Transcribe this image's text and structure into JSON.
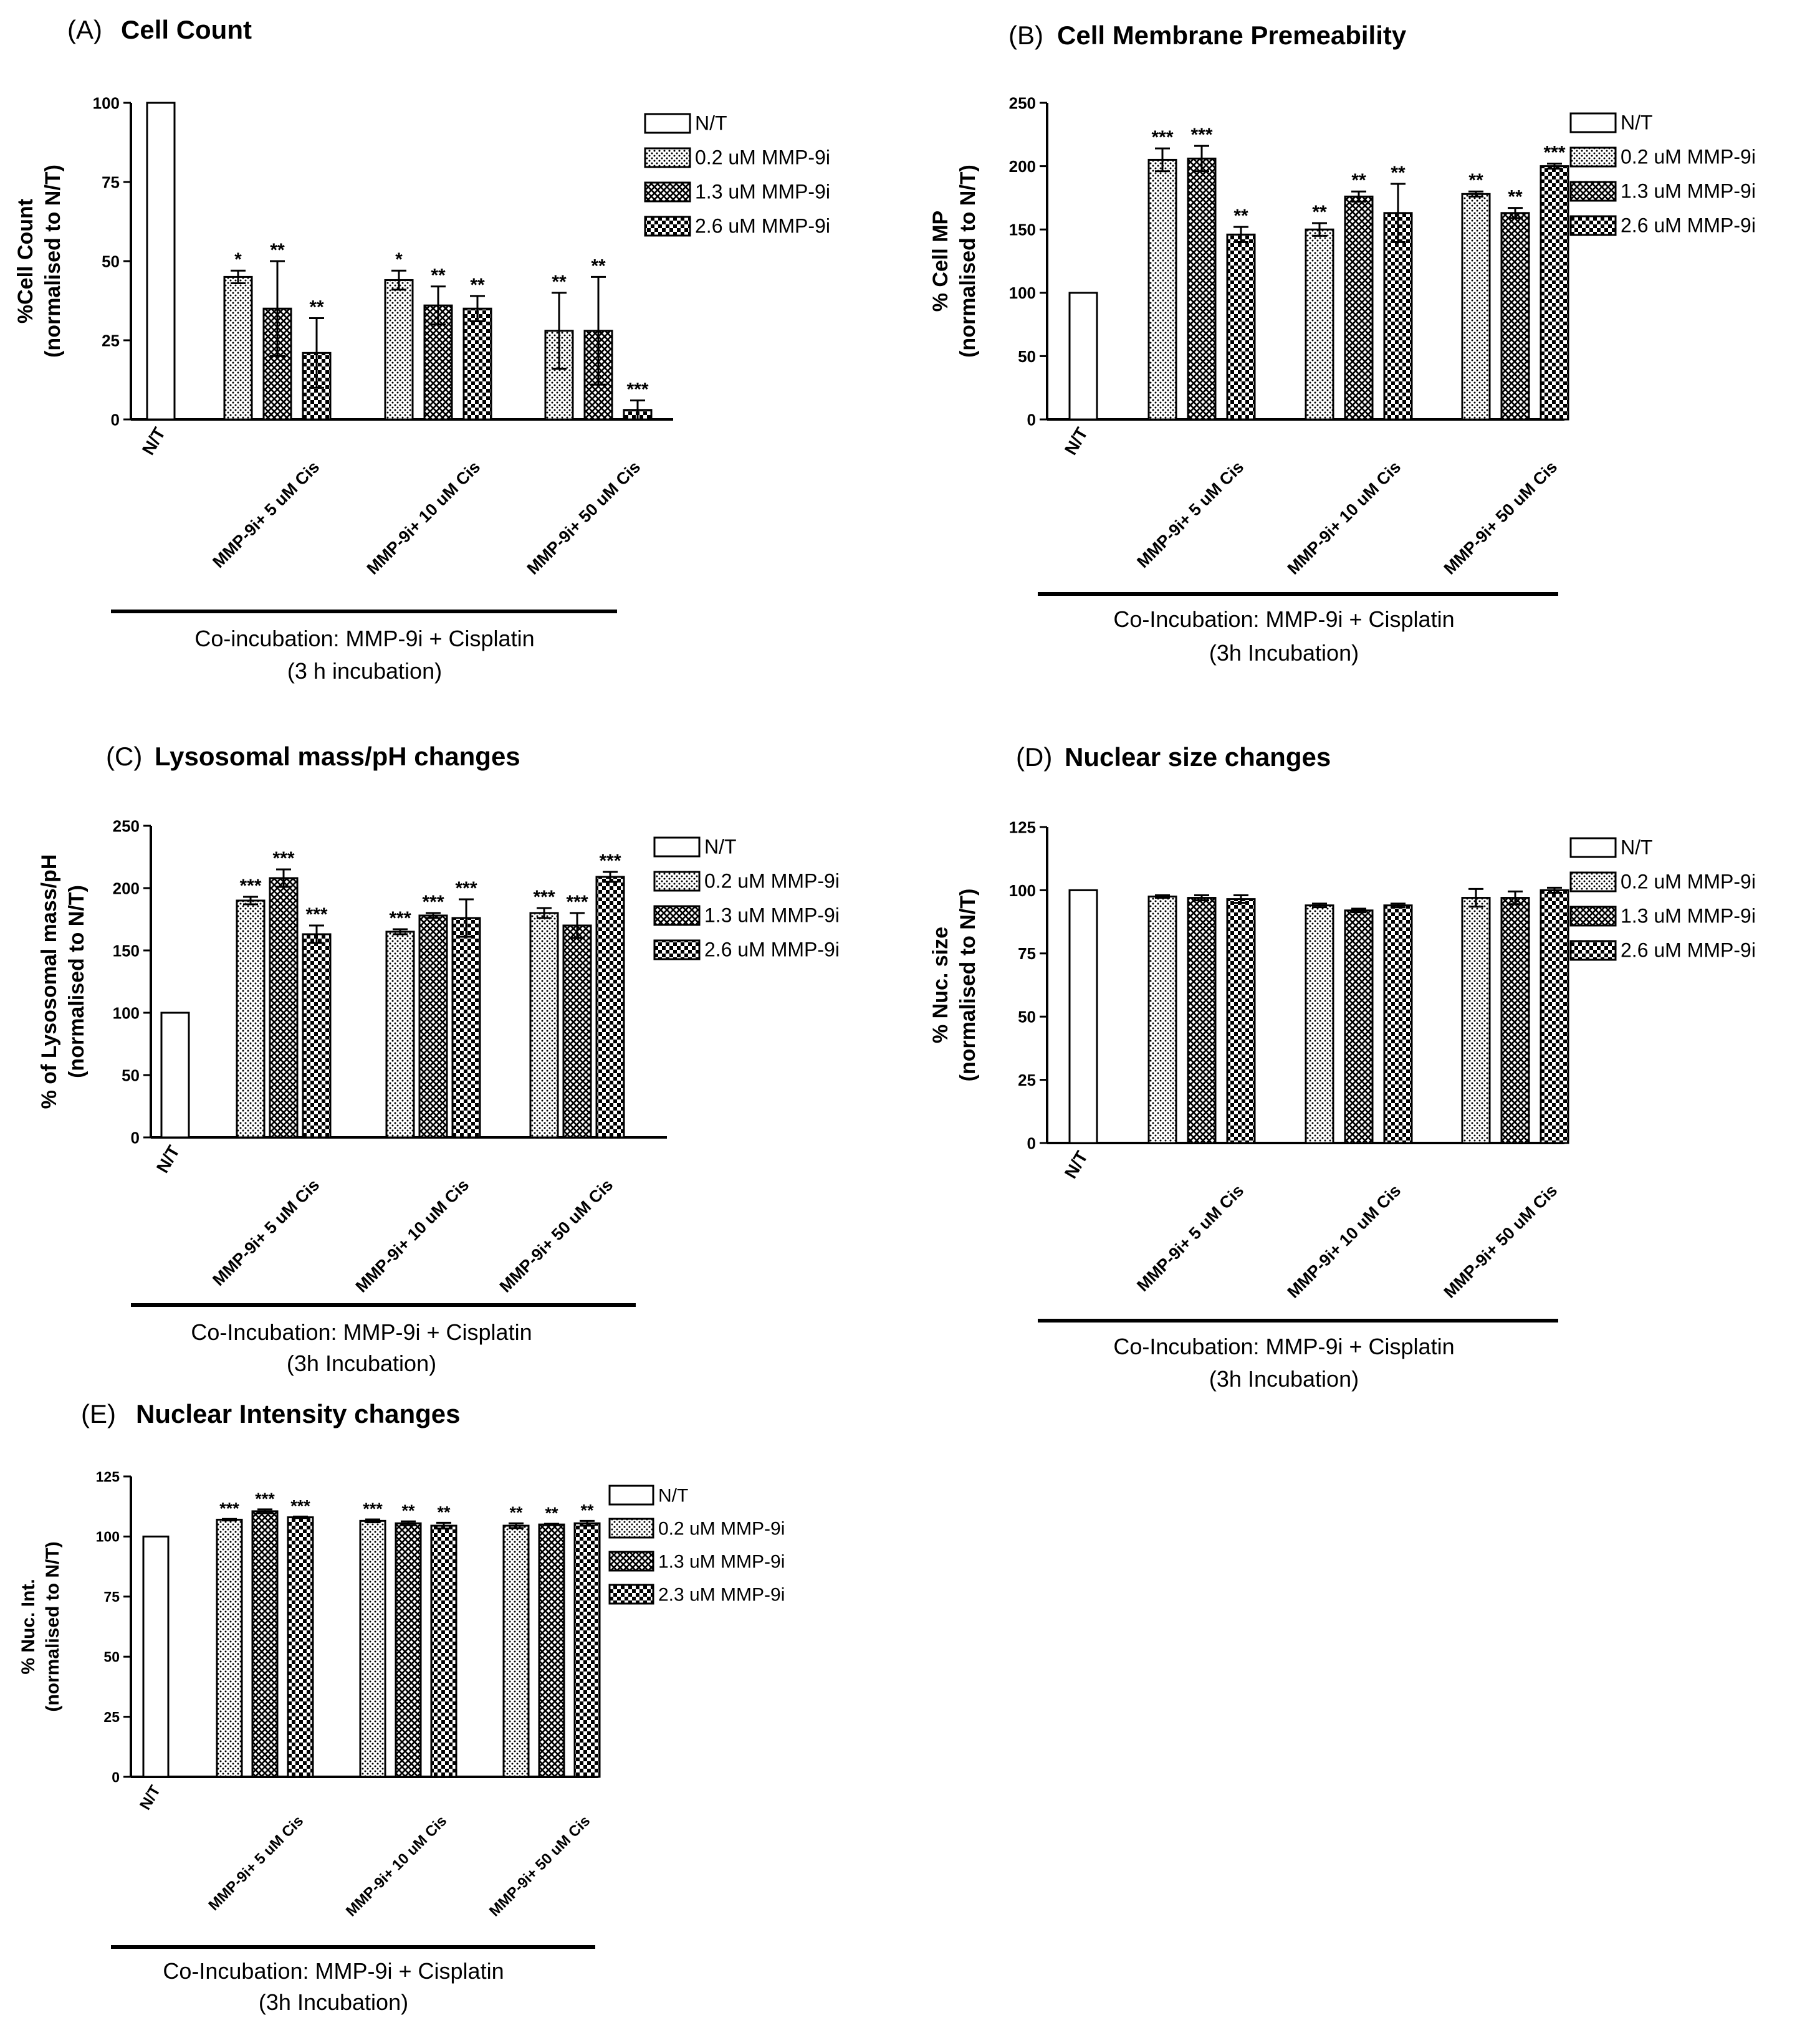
{
  "figure": {
    "description": "Five-panel bar chart figure of co-incubation of MMP-9i with Cisplatin"
  },
  "chart_data": [
    {
      "type": "bar",
      "letter": "(A)",
      "title": "Cell Count",
      "ylabel_line1": "%Cell Count",
      "ylabel_line2": "(normalised to N/T)",
      "ylim": [
        0,
        100
      ],
      "yticks": [
        0,
        25,
        50,
        75,
        100
      ],
      "control": {
        "label": "N/T",
        "value": 100
      },
      "categories": [
        "MMP-9i+ 5 uM Cis",
        "MMP-9i+ 10 uM Cis",
        "MMP-9i+ 50 uM Cis"
      ],
      "series": [
        {
          "name": "0.2 uM MMP-9i",
          "values": [
            45,
            44,
            28
          ],
          "errors": [
            2,
            3,
            12
          ],
          "sig": [
            "*",
            "*",
            "**"
          ]
        },
        {
          "name": "1.3 uM MMP-9i",
          "values": [
            35,
            36,
            28
          ],
          "errors": [
            15,
            6,
            17
          ],
          "sig": [
            "**",
            "**",
            "**"
          ]
        },
        {
          "name": "2.6 uM MMP-9i",
          "values": [
            21,
            35,
            3
          ],
          "errors": [
            11,
            4,
            3
          ],
          "sig": [
            "**",
            "**",
            "***"
          ]
        }
      ],
      "legend": [
        "N/T",
        "0.2 uM MMP-9i",
        "1.3 uM MMP-9i",
        "2.6 uM MMP-9i"
      ],
      "xlabel_line1": "Co-incubation: MMP-9i + Cisplatin",
      "xlabel_line2": "(3 h incubation)"
    },
    {
      "type": "bar",
      "letter": "(B)",
      "title": "Cell Membrane Premeability",
      "ylabel_line1": "% Cell MP",
      "ylabel_line2": "(normalised to N/T)",
      "ylim": [
        0,
        250
      ],
      "yticks": [
        0,
        50,
        100,
        150,
        200,
        250
      ],
      "control": {
        "label": "N/T",
        "value": 100
      },
      "categories": [
        "MMP-9i+ 5 uM Cis",
        "MMP-9i+ 10 uM Cis",
        "MMP-9i+ 50 uM Cis"
      ],
      "series": [
        {
          "name": "0.2 uM MMP-9i",
          "values": [
            205,
            150,
            178
          ],
          "errors": [
            9,
            5,
            2
          ],
          "sig": [
            "***",
            "**",
            "**"
          ]
        },
        {
          "name": "1.3 uM MMP-9i",
          "values": [
            206,
            176,
            163
          ],
          "errors": [
            10,
            4,
            4
          ],
          "sig": [
            "***",
            "**",
            "**"
          ]
        },
        {
          "name": "2.6 uM MMP-9i",
          "values": [
            146,
            163,
            200
          ],
          "errors": [
            6,
            23,
            2
          ],
          "sig": [
            "**",
            "**",
            "***"
          ]
        }
      ],
      "legend": [
        "N/T",
        "0.2 uM MMP-9i",
        "1.3 uM MMP-9i",
        "2.6 uM MMP-9i"
      ],
      "xlabel_line1": "Co-Incubation: MMP-9i + Cisplatin",
      "xlabel_line2": "(3h Incubation)"
    },
    {
      "type": "bar",
      "letter": "(C)",
      "title": "Lysosomal mass/pH changes",
      "ylabel_line1": "% of Lysosomal mass/pH",
      "ylabel_line2": "(normalised to N/T)",
      "ylim": [
        0,
        250
      ],
      "yticks": [
        0,
        50,
        100,
        150,
        200,
        250
      ],
      "control": {
        "label": "N/T",
        "value": 100
      },
      "categories": [
        "MMP-9i+ 5 uM Cis",
        "MMP-9i+ 10 uM Cis",
        "MMP-9i+ 50 uM Cis"
      ],
      "series": [
        {
          "name": "0.2 uM MMP-9i",
          "values": [
            190,
            165,
            180
          ],
          "errors": [
            3,
            2,
            4
          ],
          "sig": [
            "***",
            "***",
            "***"
          ]
        },
        {
          "name": "1.3 uM MMP-9i",
          "values": [
            208,
            178,
            170
          ],
          "errors": [
            7,
            2,
            10
          ],
          "sig": [
            "***",
            "***",
            "***"
          ]
        },
        {
          "name": "2.6 uM MMP-9i",
          "values": [
            163,
            176,
            209
          ],
          "errors": [
            7,
            15,
            4
          ],
          "sig": [
            "***",
            "***",
            "***"
          ]
        }
      ],
      "legend": [
        "N/T",
        "0.2 uM MMP-9i",
        "1.3 uM MMP-9i",
        "2.6 uM MMP-9i"
      ],
      "xlabel_line1": "Co-Incubation: MMP-9i + Cisplatin",
      "xlabel_line2": "(3h Incubation)"
    },
    {
      "type": "bar",
      "letter": "(D)",
      "title": "Nuclear size changes",
      "ylabel_line1": "% Nuc. size",
      "ylabel_line2": "(normalised to N/T)",
      "ylim": [
        0,
        125
      ],
      "yticks": [
        0,
        25,
        50,
        75,
        100,
        125
      ],
      "control": {
        "label": "N/T",
        "value": 100
      },
      "categories": [
        "MMP-9i+ 5 uM Cis",
        "MMP-9i+ 10 uM Cis",
        "MMP-9i+ 50 uM Cis"
      ],
      "series": [
        {
          "name": "0.2 uM MMP-9i",
          "values": [
            97.5,
            94,
            97
          ],
          "errors": [
            0.5,
            0.7,
            3.5
          ],
          "sig": [
            "",
            "",
            ""
          ]
        },
        {
          "name": "1.3 uM MMP-9i",
          "values": [
            97,
            92,
            97
          ],
          "errors": [
            1,
            0.7,
            2.5
          ],
          "sig": [
            "",
            "",
            ""
          ]
        },
        {
          "name": "2.6 uM MMP-9i",
          "values": [
            96.5,
            94,
            100
          ],
          "errors": [
            1.5,
            0.7,
            1
          ],
          "sig": [
            "",
            "",
            ""
          ]
        }
      ],
      "legend": [
        "N/T",
        "0.2 uM MMP-9i",
        "1.3 uM MMP-9i",
        "2.6 uM MMP-9i"
      ],
      "xlabel_line1": "Co-Incubation: MMP-9i + Cisplatin",
      "xlabel_line2": "(3h Incubation)"
    },
    {
      "type": "bar",
      "letter": "(E)",
      "title": "Nuclear Intensity changes",
      "ylabel_line1": "% Nuc. Int.",
      "ylabel_line2": "(normalised to N/T)",
      "ylim": [
        0,
        125
      ],
      "yticks": [
        0,
        25,
        50,
        75,
        100,
        125
      ],
      "control": {
        "label": "N/T",
        "value": 100
      },
      "categories": [
        "MMP-9i+ 5 uM Cis",
        "MMP-9i+ 10 uM Cis",
        "MMP-9i+ 50 uM Cis"
      ],
      "series": [
        {
          "name": "0.2 uM MMP-9i",
          "values": [
            107,
            106.5,
            104.5
          ],
          "errors": [
            0.3,
            0.6,
            1
          ],
          "sig": [
            "***",
            "***",
            "**"
          ]
        },
        {
          "name": "1.3 uM MMP-9i",
          "values": [
            110.5,
            105.5,
            105
          ],
          "errors": [
            0.8,
            0.8,
            0.3
          ],
          "sig": [
            "***",
            "**",
            "**"
          ]
        },
        {
          "name": "2.3 uM MMP-9i",
          "values": [
            108,
            104.5,
            105.5
          ],
          "errors": [
            0.3,
            1.2,
            1
          ],
          "sig": [
            "***",
            "**",
            "**"
          ]
        }
      ],
      "legend": [
        "N/T",
        "0.2 uM MMP-9i",
        "1.3 uM MMP-9i",
        "2.3 uM MMP-9i"
      ],
      "xlabel_line1": "Co-Incubation: MMP-9i + Cisplatin",
      "xlabel_line2": "(3h Incubation)"
    }
  ]
}
